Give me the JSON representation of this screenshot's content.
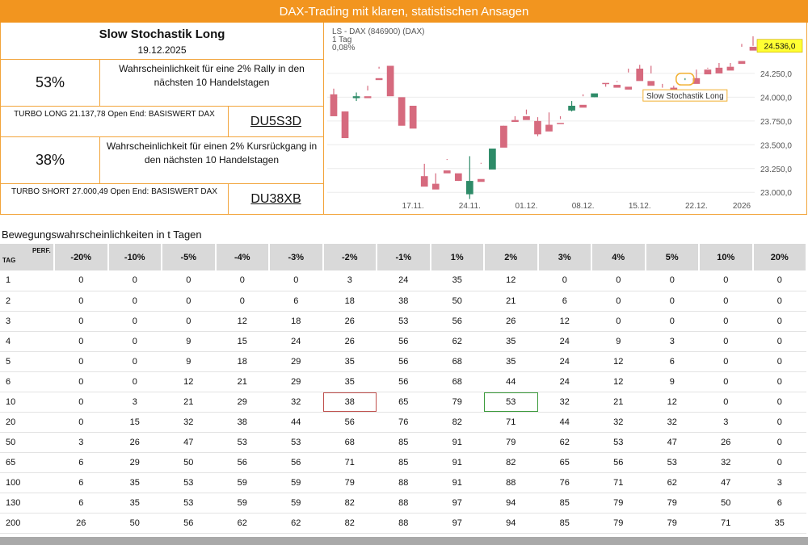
{
  "banner": {
    "title": "DAX-Trading mit klaren, statistischen Ansagen"
  },
  "info": {
    "title": "Slow Stochastik Long",
    "date": "19.12.2025",
    "long_pct": "53%",
    "long_desc": "Wahrscheinlichkeit für eine 2% Rally in den nächsten 10 Handelstagen",
    "turbo_long_text": "TURBO LONG 21.137,78 Open End: BASISWERT DAX",
    "turbo_long_code": "DU5S3D",
    "short_pct": "38%",
    "short_desc": "Wahrscheinlichkeit für einen 2% Kursrückgang in den nächsten 10 Handelstagen",
    "turbo_short_text": "TURBO SHORT 27.000,49 Open End: BASISWERT DAX",
    "turbo_short_code": "DU38XB"
  },
  "colors": {
    "accent": "#f2951f",
    "up": "#2e8b68",
    "down": "#d66a7e",
    "last_price_bg": "#ffff33"
  },
  "chart_data": {
    "type": "candlestick",
    "legend": [
      "LS - DAX (846900) (DAX)",
      "1 Tag",
      "0,08%"
    ],
    "ylim": [
      22900,
      24750
    ],
    "y_ticks": [
      23000,
      23250,
      23500,
      23750,
      24000,
      24250
    ],
    "y_tick_labels": [
      "23.000,0",
      "23.250,0",
      "23.500,0",
      "23.750,0",
      "24.000,0",
      "24.250,0"
    ],
    "x_labels": [
      "17.11.",
      "24.11.",
      "01.12.",
      "08.12.",
      "15.12.",
      "22.12.",
      "2026"
    ],
    "x_label_positions": [
      7,
      12,
      17,
      22,
      27,
      32,
      36
    ],
    "last_price_label": "24.536,0",
    "annotation": "Slow Stochastik Long",
    "annotation_index": 31,
    "candles": [
      [
        24030,
        24090,
        23850,
        23800
      ],
      [
        23850,
        23850,
        23700,
        23570
      ],
      [
        23990,
        24050,
        23960,
        24010
      ],
      [
        24010,
        24120,
        24070,
        23990
      ],
      [
        24200,
        24300,
        24320,
        24180
      ],
      [
        24330,
        24320,
        24020,
        24010
      ],
      [
        24000,
        23990,
        23900,
        23700
      ],
      [
        23910,
        23910,
        23690,
        23670
      ],
      [
        23170,
        23300,
        23110,
        23060
      ],
      [
        23090,
        23200,
        23090,
        23030
      ],
      [
        23230,
        23340,
        23350,
        23200
      ],
      [
        23200,
        23180,
        23120,
        23120
      ],
      [
        22980,
        23380,
        22930,
        23120
      ],
      [
        23140,
        23300,
        23310,
        23110
      ],
      [
        23240,
        23350,
        23430,
        23460
      ],
      [
        23700,
        23700,
        23690,
        23470
      ],
      [
        23760,
        23800,
        23760,
        23740
      ],
      [
        23800,
        23870,
        23820,
        23760
      ],
      [
        23750,
        23790,
        23590,
        23610
      ],
      [
        23710,
        23840,
        23700,
        23640
      ],
      [
        23730,
        23770,
        23800,
        23720
      ],
      [
        23860,
        23960,
        23850,
        23910
      ],
      [
        23920,
        24030,
        24010,
        23890
      ],
      [
        24000,
        24020,
        24000,
        24040
      ],
      [
        24150,
        24140,
        24110,
        24140
      ],
      [
        24130,
        24160,
        24170,
        24100
      ],
      [
        24110,
        24300,
        24260,
        24080
      ],
      [
        24300,
        24340,
        24180,
        24170
      ],
      [
        24170,
        24330,
        24250,
        24120
      ],
      [
        24080,
        24140,
        24100,
        24030
      ],
      [
        24100,
        24120,
        23980,
        23990
      ],
      [
        23990,
        24200,
        24180,
        24050
      ],
      [
        24200,
        24160,
        24290,
        24140
      ],
      [
        24290,
        24310,
        24300,
        24240
      ],
      [
        24310,
        24360,
        24310,
        24250
      ],
      [
        24320,
        24360,
        24320,
        24280
      ],
      [
        24380,
        24560,
        24530,
        24350
      ],
      [
        24530,
        24640,
        24540,
        24490
      ]
    ]
  },
  "table": {
    "section_title": "Bewegungswahrscheinlichkeiten in t Tagen",
    "corner_perf": "PERF.",
    "corner_tag": "TAG",
    "columns": [
      "-20%",
      "-10%",
      "-5%",
      "-4%",
      "-3%",
      "-2%",
      "-1%",
      "1%",
      "2%",
      "3%",
      "4%",
      "5%",
      "10%",
      "20%"
    ],
    "rows": [
      {
        "tag": "1",
        "values": [
          "0",
          "0",
          "0",
          "0",
          "0",
          "3",
          "24",
          "35",
          "12",
          "0",
          "0",
          "0",
          "0",
          "0"
        ]
      },
      {
        "tag": "2",
        "values": [
          "0",
          "0",
          "0",
          "0",
          "6",
          "18",
          "38",
          "50",
          "21",
          "6",
          "0",
          "0",
          "0",
          "0"
        ]
      },
      {
        "tag": "3",
        "values": [
          "0",
          "0",
          "0",
          "12",
          "18",
          "26",
          "53",
          "56",
          "26",
          "12",
          "0",
          "0",
          "0",
          "0"
        ]
      },
      {
        "tag": "4",
        "values": [
          "0",
          "0",
          "9",
          "15",
          "24",
          "26",
          "56",
          "62",
          "35",
          "24",
          "9",
          "3",
          "0",
          "0"
        ]
      },
      {
        "tag": "5",
        "values": [
          "0",
          "0",
          "9",
          "18",
          "29",
          "35",
          "56",
          "68",
          "35",
          "24",
          "12",
          "6",
          "0",
          "0"
        ]
      },
      {
        "tag": "6",
        "values": [
          "0",
          "0",
          "12",
          "21",
          "29",
          "35",
          "56",
          "68",
          "44",
          "24",
          "12",
          "9",
          "0",
          "0"
        ]
      },
      {
        "tag": "10",
        "values": [
          "0",
          "3",
          "21",
          "29",
          "32",
          "38",
          "65",
          "79",
          "53",
          "32",
          "21",
          "12",
          "0",
          "0"
        ]
      },
      {
        "tag": "20",
        "values": [
          "0",
          "15",
          "32",
          "38",
          "44",
          "56",
          "76",
          "82",
          "71",
          "44",
          "32",
          "32",
          "3",
          "0"
        ]
      },
      {
        "tag": "50",
        "values": [
          "3",
          "26",
          "47",
          "53",
          "53",
          "68",
          "85",
          "91",
          "79",
          "62",
          "53",
          "47",
          "26",
          "0"
        ]
      },
      {
        "tag": "65",
        "values": [
          "6",
          "29",
          "50",
          "56",
          "56",
          "71",
          "85",
          "91",
          "82",
          "65",
          "56",
          "53",
          "32",
          "0"
        ]
      },
      {
        "tag": "100",
        "values": [
          "6",
          "35",
          "53",
          "59",
          "59",
          "79",
          "88",
          "91",
          "88",
          "76",
          "71",
          "62",
          "47",
          "3"
        ]
      },
      {
        "tag": "130",
        "values": [
          "6",
          "35",
          "53",
          "59",
          "59",
          "82",
          "88",
          "97",
          "94",
          "85",
          "79",
          "79",
          "50",
          "6"
        ]
      },
      {
        "tag": "200",
        "values": [
          "26",
          "50",
          "56",
          "62",
          "62",
          "82",
          "88",
          "97",
          "94",
          "85",
          "79",
          "79",
          "71",
          "35"
        ]
      }
    ],
    "highlight": [
      {
        "row": 6,
        "col": 5,
        "color": "red"
      },
      {
        "row": 6,
        "col": 8,
        "color": "green"
      }
    ]
  }
}
